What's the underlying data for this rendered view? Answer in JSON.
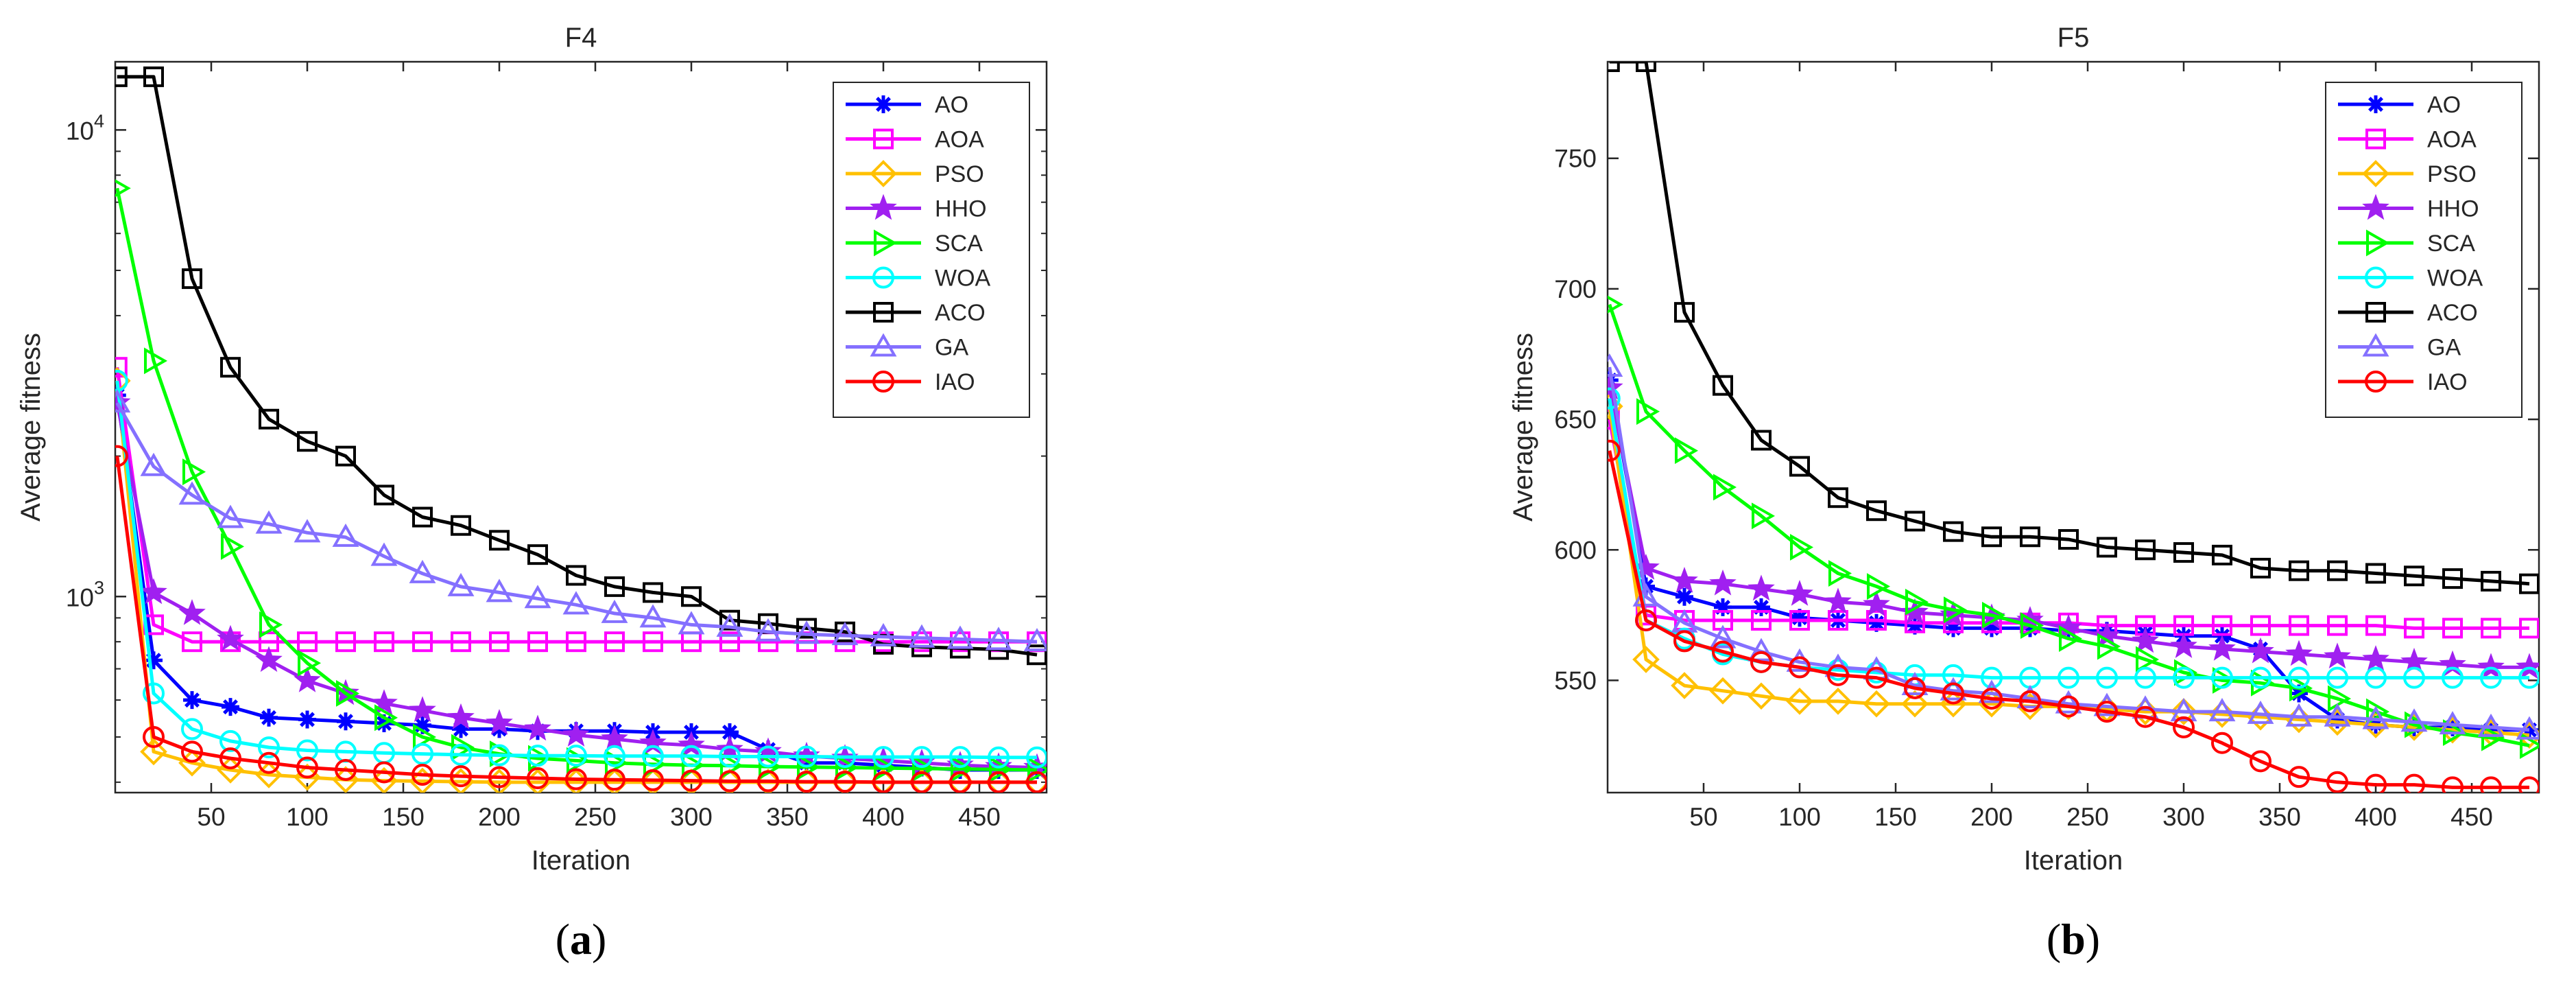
{
  "chart_data": [
    {
      "type": "line",
      "panel_label": "a",
      "title": "F4",
      "xlabel": "Iteration",
      "ylabel": "Average fitness",
      "yscale": "log",
      "xlim": [
        0,
        485
      ],
      "ylim": [
        380,
        14000
      ],
      "xticks": [
        50,
        100,
        150,
        200,
        250,
        300,
        350,
        400,
        450
      ],
      "yticks": [
        {
          "value": 1000,
          "label": "10^3"
        },
        {
          "value": 10000,
          "label": "10^4"
        }
      ],
      "legend_position": "top-right",
      "x": [
        1,
        20,
        40,
        60,
        80,
        100,
        120,
        140,
        160,
        180,
        200,
        220,
        240,
        260,
        280,
        300,
        320,
        340,
        360,
        380,
        400,
        420,
        440,
        460,
        480
      ],
      "series": [
        {
          "name": "AO",
          "color": "#0000ff",
          "marker": "asterisk",
          "values": [
            2700,
            730,
            600,
            580,
            550,
            545,
            540,
            535,
            530,
            520,
            520,
            515,
            515,
            515,
            512,
            512,
            512,
            470,
            440,
            440,
            435,
            430,
            425,
            425,
            425
          ]
        },
        {
          "name": "AOA",
          "color": "#ff00ff",
          "marker": "square",
          "values": [
            3100,
            870,
            800,
            800,
            800,
            800,
            800,
            800,
            800,
            800,
            800,
            800,
            800,
            800,
            800,
            800,
            800,
            800,
            800,
            800,
            800,
            800,
            800,
            800,
            800
          ]
        },
        {
          "name": "PSO",
          "color": "#ffc000",
          "marker": "diamond",
          "values": [
            2900,
            465,
            440,
            425,
            415,
            410,
            405,
            403,
            402,
            401,
            400,
            400,
            400,
            400,
            400,
            400,
            400,
            400,
            400,
            400,
            400,
            400,
            400,
            400,
            400
          ]
        },
        {
          "name": "HHO",
          "color": "#a020f0",
          "marker": "star",
          "values": [
            2600,
            1020,
            920,
            810,
            730,
            660,
            620,
            590,
            570,
            550,
            535,
            520,
            505,
            495,
            485,
            480,
            470,
            465,
            455,
            450,
            445,
            440,
            435,
            432,
            430
          ]
        },
        {
          "name": "SCA",
          "color": "#00ff00",
          "marker": "triangle-right",
          "values": [
            7500,
            3200,
            1850,
            1280,
            870,
            720,
            620,
            550,
            500,
            475,
            460,
            450,
            445,
            440,
            437,
            435,
            434,
            432,
            431,
            430,
            429,
            428,
            427,
            426,
            425
          ]
        },
        {
          "name": "WOA",
          "color": "#00ffff",
          "marker": "circle",
          "values": [
            2900,
            620,
            520,
            490,
            475,
            468,
            465,
            462,
            460,
            458,
            457,
            456,
            456,
            455,
            455,
            455,
            454,
            454,
            454,
            453,
            453,
            453,
            453,
            452,
            452
          ]
        },
        {
          "name": "ACO",
          "color": "#000000",
          "marker": "square",
          "values": [
            13000,
            13000,
            4800,
            3100,
            2400,
            2150,
            2000,
            1650,
            1480,
            1420,
            1320,
            1230,
            1110,
            1050,
            1020,
            1000,
            890,
            875,
            855,
            840,
            790,
            780,
            775,
            770,
            750
          ]
        },
        {
          "name": "GA",
          "color": "#8470ff",
          "marker": "triangle-up",
          "values": [
            2600,
            1900,
            1650,
            1470,
            1430,
            1370,
            1340,
            1220,
            1120,
            1050,
            1020,
            990,
            960,
            920,
            900,
            870,
            860,
            840,
            830,
            825,
            820,
            815,
            810,
            805,
            800
          ]
        },
        {
          "name": "IAO",
          "color": "#ff0000",
          "marker": "circle",
          "values": [
            2000,
            500,
            465,
            450,
            440,
            430,
            425,
            420,
            415,
            412,
            410,
            408,
            406,
            405,
            404,
            403,
            402,
            402,
            401,
            401,
            400,
            400,
            400,
            400,
            400
          ]
        }
      ]
    },
    {
      "type": "line",
      "panel_label": "b",
      "title": "F5",
      "xlabel": "Iteration",
      "ylabel": "Average fitness",
      "yscale": "linear",
      "xlim": [
        0,
        485
      ],
      "ylim": [
        507,
        787
      ],
      "xticks": [
        50,
        100,
        150,
        200,
        250,
        300,
        350,
        400,
        450
      ],
      "yticks": [
        {
          "value": 550,
          "label": "550"
        },
        {
          "value": 600,
          "label": "600"
        },
        {
          "value": 650,
          "label": "650"
        },
        {
          "value": 700,
          "label": "700"
        },
        {
          "value": 750,
          "label": "750"
        }
      ],
      "legend_position": "top-right",
      "x": [
        1,
        20,
        40,
        60,
        80,
        100,
        120,
        140,
        160,
        180,
        200,
        220,
        240,
        260,
        280,
        300,
        320,
        340,
        360,
        380,
        400,
        420,
        440,
        460,
        480
      ],
      "series": [
        {
          "name": "AO",
          "color": "#0000ff",
          "marker": "asterisk",
          "values": [
            665,
            586,
            582,
            578,
            578,
            574,
            573,
            572,
            571,
            570,
            570,
            570,
            569,
            569,
            568,
            567,
            567,
            562,
            545,
            535,
            533,
            532,
            532,
            531,
            531
          ]
        },
        {
          "name": "AOA",
          "color": "#ff00ff",
          "marker": "square",
          "values": [
            650,
            575,
            573,
            573,
            573,
            573,
            573,
            573,
            572,
            572,
            572,
            572,
            572,
            571,
            571,
            571,
            571,
            571,
            571,
            571,
            571,
            570,
            570,
            570,
            570
          ]
        },
        {
          "name": "PSO",
          "color": "#ffc000",
          "marker": "diamond",
          "values": [
            655,
            558,
            548,
            546,
            544,
            542,
            542,
            541,
            541,
            541,
            541,
            540,
            540,
            539,
            538,
            538,
            537,
            536,
            535,
            534,
            533,
            532,
            531,
            530,
            529
          ]
        },
        {
          "name": "HHO",
          "color": "#a020f0",
          "marker": "star",
          "values": [
            662,
            593,
            588,
            587,
            585,
            583,
            580,
            579,
            576,
            575,
            574,
            573,
            570,
            567,
            565,
            563,
            562,
            561,
            560,
            559,
            558,
            557,
            556,
            555,
            555
          ]
        },
        {
          "name": "SCA",
          "color": "#00ff00",
          "marker": "triangle-right",
          "values": [
            694,
            653,
            638,
            624,
            613,
            601,
            591,
            586,
            580,
            577,
            575,
            571,
            566,
            563,
            558,
            553,
            550,
            549,
            547,
            543,
            538,
            533,
            530,
            528,
            525
          ]
        },
        {
          "name": "WOA",
          "color": "#00ffff",
          "marker": "circle",
          "values": [
            658,
            573,
            566,
            560,
            557,
            555,
            554,
            553,
            552,
            552,
            551,
            551,
            551,
            551,
            551,
            551,
            551,
            551,
            551,
            551,
            551,
            551,
            551,
            551,
            551
          ]
        },
        {
          "name": "ACO",
          "color": "#000000",
          "marker": "square",
          "values": [
            787,
            787,
            691,
            663,
            642,
            632,
            620,
            615,
            611,
            607,
            605,
            605,
            604,
            601,
            600,
            599,
            598,
            593,
            592,
            592,
            591,
            590,
            589,
            588,
            587
          ]
        },
        {
          "name": "GA",
          "color": "#8470ff",
          "marker": "triangle-up",
          "values": [
            670,
            582,
            572,
            566,
            561,
            557,
            555,
            554,
            548,
            546,
            545,
            543,
            541,
            540,
            539,
            538,
            538,
            537,
            536,
            536,
            535,
            534,
            533,
            532,
            531
          ]
        },
        {
          "name": "IAO",
          "color": "#ff0000",
          "marker": "circle",
          "values": [
            638,
            573,
            565,
            561,
            557,
            555,
            552,
            551,
            547,
            545,
            543,
            542,
            540,
            538,
            536,
            532,
            526,
            519,
            513,
            511,
            510,
            510,
            509,
            509,
            509
          ]
        }
      ]
    }
  ]
}
